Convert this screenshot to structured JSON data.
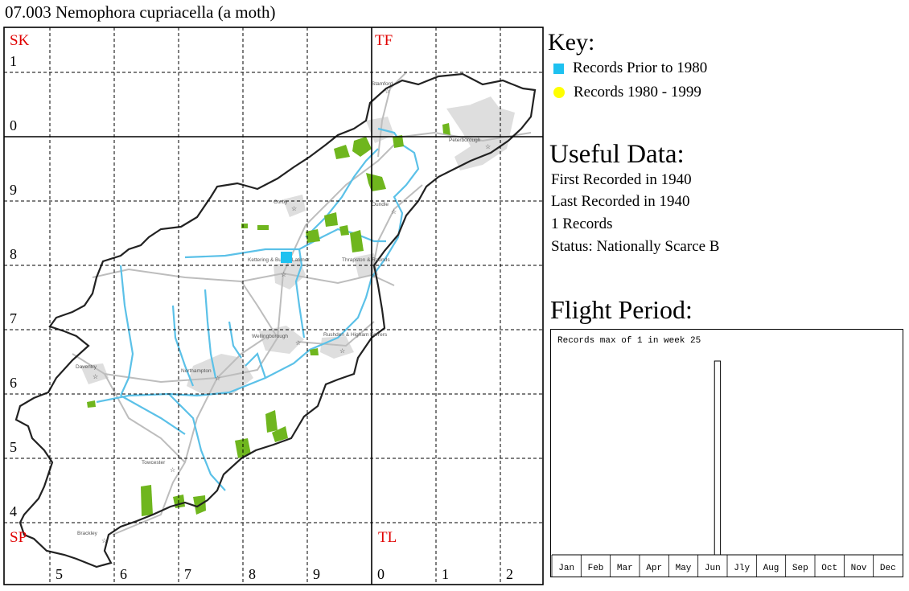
{
  "title": "07.003 Nemophora cupriacella (a moth)",
  "map": {
    "big_squares": [
      {
        "label": "SK",
        "color": "#e00000"
      },
      {
        "label": "TF",
        "color": "#e00000"
      },
      {
        "label": "SP",
        "color": "#e00000"
      },
      {
        "label": "TL",
        "color": "#e00000"
      }
    ],
    "col_labels": [
      "5",
      "6",
      "7",
      "8",
      "9",
      "0",
      "1",
      "2"
    ],
    "row_labels": [
      "1",
      "0",
      "9",
      "8",
      "7",
      "6",
      "5",
      "4"
    ],
    "towns": [
      {
        "name": "Stamford"
      },
      {
        "name": "Peterborough"
      },
      {
        "name": "Corby"
      },
      {
        "name": "Oundle"
      },
      {
        "name": "Kettering & Burton Latimer"
      },
      {
        "name": "Thrapston & Raunds"
      },
      {
        "name": "Wellingborough"
      },
      {
        "name": "Rushden & Higham Ferrers"
      },
      {
        "name": "Daventry"
      },
      {
        "name": "Northampton"
      },
      {
        "name": "Towcester"
      },
      {
        "name": "Brackley"
      }
    ],
    "records": [
      {
        "type": "prior_1980",
        "square": "SP88",
        "color": "#1ec1f0"
      }
    ],
    "colors": {
      "boundary": "#222222",
      "river": "#5bc1e8",
      "road": "#bdbdbd",
      "urban": "#dddddd",
      "woodland": "#6fb61e"
    }
  },
  "key": {
    "title": "Key:",
    "items": [
      {
        "label": "Records Prior to 1980",
        "color": "#1ec1f0",
        "shape": "square"
      },
      {
        "label": "Records 1980 - 1999",
        "color": "#ffff00",
        "shape": "circle"
      }
    ]
  },
  "useful": {
    "title": "Useful Data:",
    "lines": [
      "First Recorded in 1940",
      "Last Recorded in 1940",
      "1 Records",
      "Status: Nationally Scarce B"
    ]
  },
  "flight": {
    "title": "Flight Period:"
  },
  "chart_data": {
    "type": "bar",
    "title": "Records max of 1 in week 25",
    "categories": [
      "Jan",
      "Feb",
      "Mar",
      "Apr",
      "May",
      "Jun",
      "Jly",
      "Aug",
      "Sep",
      "Oct",
      "Nov",
      "Dec"
    ],
    "weeks": 52,
    "series": [
      {
        "week": 25,
        "value": 1
      }
    ],
    "ylim": [
      0,
      1
    ],
    "grid": false
  }
}
